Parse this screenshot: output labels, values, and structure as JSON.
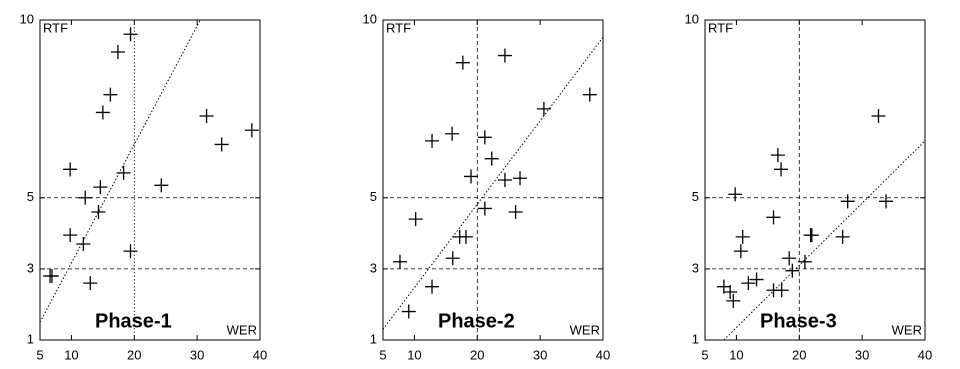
{
  "chart_data": [
    {
      "type": "scatter",
      "annotation": "Phase-1",
      "xlabel": "WER",
      "ylabel": "RTF",
      "x": [
        19.4,
        17.4,
        16.2,
        15.0,
        9.8,
        18.3,
        14.6,
        12.2,
        24.3,
        14.3,
        9.8,
        11.9,
        19.4,
        6.6,
        6.9,
        13.0,
        31.5,
        33.9,
        38.7
      ],
      "y": [
        9.6,
        9.1,
        7.9,
        7.4,
        5.8,
        5.7,
        5.3,
        5.0,
        5.35,
        4.6,
        3.95,
        3.7,
        3.5,
        2.8,
        2.8,
        2.6,
        7.3,
        6.5,
        6.9
      ],
      "xlim": [
        5,
        40
      ],
      "ylim": [
        1,
        10
      ],
      "xticks": [
        5,
        10,
        20,
        30,
        40
      ],
      "yticks": [
        1,
        3,
        5,
        10
      ],
      "hlines": [
        3,
        5
      ],
      "vline": 20,
      "diagonal": {
        "x": [
          5,
          30.5
        ],
        "y": [
          1.5,
          10
        ]
      },
      "color": "#000000"
    },
    {
      "type": "scatter",
      "annotation": "Phase-2",
      "xlabel": "WER",
      "ylabel": "RTF",
      "x": [
        17.7,
        24.4,
        30.6,
        37.9,
        12.8,
        16.0,
        21.2,
        22.3,
        19.0,
        24.4,
        26.8,
        21.2,
        26.1,
        10.2,
        17.2,
        18.2,
        16.1,
        7.7,
        12.8,
        9.1
      ],
      "y": [
        8.8,
        9.0,
        7.5,
        7.9,
        6.6,
        6.8,
        6.7,
        6.1,
        5.6,
        5.5,
        5.55,
        4.7,
        4.6,
        4.4,
        3.9,
        3.9,
        3.3,
        3.2,
        2.5,
        1.8
      ],
      "xlim": [
        5,
        40
      ],
      "ylim": [
        1,
        10
      ],
      "xticks": [
        5,
        10,
        20,
        30,
        40
      ],
      "yticks": [
        1,
        3,
        5,
        10
      ],
      "hlines": [
        3,
        5
      ],
      "vline": 20,
      "diagonal": {
        "x": [
          5,
          40.8
        ],
        "y": [
          1.3,
          9.7
        ]
      },
      "color": "#000000"
    },
    {
      "type": "scatter",
      "annotation": "Phase-3",
      "xlabel": "WER",
      "ylabel": "RTF",
      "x": [
        32.6,
        16.6,
        17.1,
        9.8,
        27.7,
        33.8,
        15.9,
        11.0,
        10.7,
        21.8,
        22.0,
        26.9,
        18.4,
        20.9,
        18.9,
        13.2,
        11.9,
        8.0,
        9.0,
        15.9,
        17.2,
        9.5
      ],
      "y": [
        7.3,
        6.2,
        5.8,
        5.1,
        4.9,
        4.9,
        4.45,
        3.9,
        3.5,
        3.95,
        3.95,
        3.9,
        3.3,
        3.2,
        2.95,
        2.7,
        2.6,
        2.5,
        2.35,
        2.4,
        2.4,
        2.1
      ],
      "xlim": [
        5,
        40
      ],
      "ylim": [
        1,
        10
      ],
      "xticks": [
        5,
        10,
        20,
        30,
        40
      ],
      "yticks": [
        1,
        3,
        5,
        10
      ],
      "hlines": [
        3,
        5
      ],
      "vline": 20,
      "diagonal": {
        "x": [
          8,
          40
        ],
        "y": [
          1,
          6.6
        ]
      },
      "color": "#000000"
    }
  ]
}
